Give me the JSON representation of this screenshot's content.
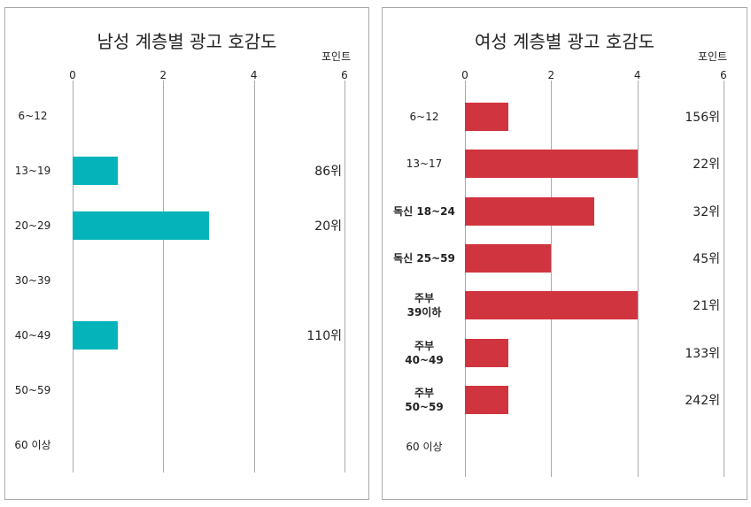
{
  "chart_data": [
    {
      "type": "bar",
      "orientation": "horizontal",
      "title": "남성 계층별 광고 호감도",
      "unit_label": "포인트",
      "xlim": [
        0,
        6
      ],
      "ticks": [
        "0",
        "2",
        "4",
        "6"
      ],
      "categories": [
        "6~12",
        "13~19",
        "20~29",
        "30~39",
        "40~49",
        "50~59",
        "60 이상"
      ],
      "values": [
        0,
        1,
        3,
        0,
        1,
        0,
        0
      ],
      "rank_labels": [
        "",
        "86위",
        "20위",
        "",
        "110위",
        "",
        ""
      ],
      "color": "#04b4ba"
    },
    {
      "type": "bar",
      "orientation": "horizontal",
      "title": "여성 계층별 광고 호감도",
      "unit_label": "포인트",
      "xlim": [
        0,
        6
      ],
      "ticks": [
        "0",
        "2",
        "4",
        "6"
      ],
      "categories": [
        "6~12",
        "13~17",
        "독신 18~24",
        "독신 25~59",
        "주부\n39이하",
        "주부\n40~49",
        "주부\n50~59",
        "60 이상"
      ],
      "values": [
        1,
        4,
        3,
        2,
        4,
        1,
        1,
        0
      ],
      "rank_labels": [
        "156위",
        "22위",
        "32위",
        "45위",
        "21위",
        "133위",
        "242위",
        ""
      ],
      "color": "#d0343f"
    }
  ]
}
